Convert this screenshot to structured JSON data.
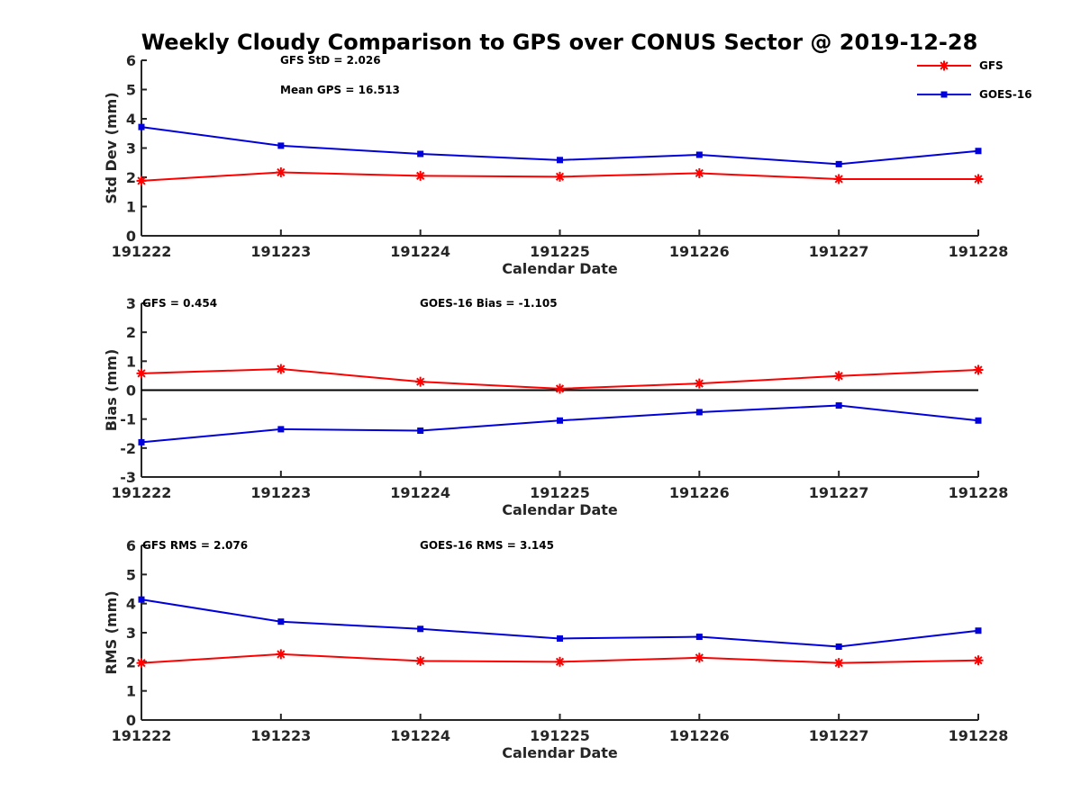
{
  "title": "Weekly Cloudy Comparison to GPS over CONUS Sector @ 2019-12-28",
  "legend": [
    {
      "name": "GFS",
      "color": "#ff0000",
      "marker": "asterisk"
    },
    {
      "name": "GOES-16",
      "color": "#0000dd",
      "marker": "square"
    }
  ],
  "chart_data": [
    {
      "type": "line",
      "title": "",
      "xlabel": "Calendar Date",
      "ylabel": "Std Dev (mm)",
      "ylim": [
        0,
        6
      ],
      "yticks": [
        "0",
        "1",
        "2",
        "3",
        "4",
        "5",
        "6"
      ],
      "categories": [
        "191222",
        "191223",
        "191224",
        "191225",
        "191226",
        "191227",
        "191228"
      ],
      "series": [
        {
          "name": "GFS",
          "values": [
            1.88,
            2.17,
            2.05,
            2.02,
            2.14,
            1.94,
            1.94
          ]
        },
        {
          "name": "GOES-16",
          "values": [
            3.72,
            3.08,
            2.8,
            2.59,
            2.77,
            2.45,
            2.9
          ]
        }
      ],
      "annotations": [
        "GFS StD = 2.026",
        "Mean GPS = 16.513"
      ],
      "legend_position": "top-right"
    },
    {
      "type": "line",
      "title": "",
      "xlabel": "Calendar Date",
      "ylabel": "Bias (mm)",
      "ylim": [
        -3,
        3
      ],
      "yticks": [
        "-3",
        "-2",
        "-1",
        "0",
        "1",
        "2",
        "3"
      ],
      "categories": [
        "191222",
        "191223",
        "191224",
        "191225",
        "191226",
        "191227",
        "191228"
      ],
      "zero_line": true,
      "series": [
        {
          "name": "GFS",
          "values": [
            0.58,
            0.73,
            0.29,
            0.05,
            0.23,
            0.49,
            0.7
          ]
        },
        {
          "name": "GOES-16",
          "values": [
            -1.8,
            -1.35,
            -1.4,
            -1.05,
            -0.76,
            -0.53,
            -1.05
          ]
        }
      ],
      "annotations": [
        "GFS = 0.454",
        "GOES-16 Bias  = -1.105"
      ]
    },
    {
      "type": "line",
      "title": "",
      "xlabel": "Calendar Date",
      "ylabel": "RMS (mm)",
      "ylim": [
        0,
        6
      ],
      "yticks": [
        "0",
        "1",
        "2",
        "3",
        "4",
        "5",
        "6"
      ],
      "categories": [
        "191222",
        "191223",
        "191224",
        "191225",
        "191226",
        "191227",
        "191228"
      ],
      "series": [
        {
          "name": "GFS",
          "values": [
            1.96,
            2.26,
            2.03,
            2.0,
            2.14,
            1.96,
            2.05
          ]
        },
        {
          "name": "GOES-16",
          "values": [
            4.14,
            3.38,
            3.13,
            2.8,
            2.86,
            2.52,
            3.07
          ]
        }
      ],
      "annotations": [
        "GFS RMS = 2.076",
        "GOES-16 RMS = 3.145"
      ]
    }
  ]
}
